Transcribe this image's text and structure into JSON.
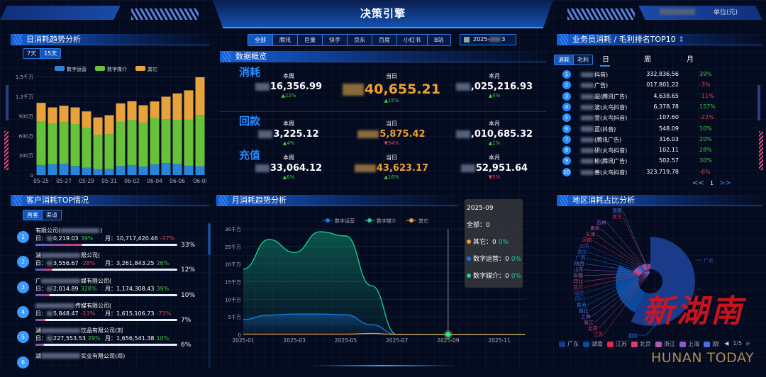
{
  "header": {
    "title": "决策引擎",
    "unit": "单位(元)"
  },
  "colors": {
    "digital_ops": "#2a85d8",
    "digital_media": "#67c23a",
    "other": "#e8a23c",
    "line_ops": "#1a7ae0",
    "line_media": "#17d69a",
    "line_other": "#e8a23c",
    "up": "#43c440",
    "down": "#e64052",
    "accent": "#2a8cff"
  },
  "daily": {
    "title": "日消耗趋势分析",
    "tabs": [
      "7天",
      "15天"
    ],
    "active_tab": "15天"
  },
  "platform_tabs": {
    "items": [
      "全部",
      "腾讯",
      "巨量",
      "快手",
      "京东",
      "百度",
      "小红书",
      "B站"
    ],
    "active": "全部"
  },
  "date_picker": {
    "icon": "calendar-icon",
    "value_visible": "2025-",
    "value_suffix": "3"
  },
  "overview": {
    "title": "数据概览",
    "rows": [
      {
        "label": "消耗",
        "cells": [
          {
            "period": "本周",
            "value": "16,356.99",
            "change": "22%",
            "dir": "up"
          },
          {
            "period": "当日",
            "value": "40,655.21",
            "change": "15%",
            "dir": "up"
          },
          {
            "period": "本月",
            "value": ",025,216.93",
            "change": "4%",
            "dir": "up"
          }
        ]
      },
      {
        "label": "回款",
        "cells": [
          {
            "period": "本周",
            "value": "3,225.12",
            "change": "4%",
            "dir": "up"
          },
          {
            "period": "当日",
            "value": "5,875.42",
            "change": "34%",
            "dir": "down"
          },
          {
            "period": "本月",
            "value": ",010,685.32",
            "change": "1%",
            "dir": "up"
          }
        ]
      },
      {
        "label": "充值",
        "cells": [
          {
            "period": "本周",
            "value": "33,064.12",
            "change": "6%",
            "dir": "up"
          },
          {
            "period": "当日",
            "value": "43,623.17",
            "change": "16%",
            "dir": "up"
          },
          {
            "period": "本月",
            "value": "52,951.64",
            "change": "5%",
            "dir": "down"
          }
        ]
      }
    ]
  },
  "ranking": {
    "title": "业务员消耗 / 毛利排名TOP10",
    "tabs": [
      "消耗",
      "毛利"
    ],
    "active_tab": "消耗",
    "periods": [
      "日",
      "周",
      "月"
    ],
    "active_period": "日",
    "rows": [
      {
        "rank": "1",
        "name": "抖音)",
        "amount": "332,836.56",
        "change": "39%",
        "dir": "up"
      },
      {
        "rank": "2",
        "name": "广告)",
        "amount": "017,801.22",
        "change": "-3%",
        "dir": "down"
      },
      {
        "rank": "3",
        "name": "超(腾讯广告)",
        "amount": "4,638.65",
        "change": "-11%",
        "dir": "down"
      },
      {
        "rank": "4",
        "name": "波(火鸟抖音)",
        "amount": "6,378.78",
        "change": "157%",
        "dir": "up"
      },
      {
        "rank": "5",
        "name": "萱(火鸟抖音)",
        "amount": ",107.60",
        "change": "-22%",
        "dir": "down"
      },
      {
        "rank": "6",
        "name": "蓝(抖音)",
        "amount": "548.09",
        "change": "10%",
        "dir": "up"
      },
      {
        "rank": "7",
        "name": "(腾讯广告)",
        "amount": "316.03",
        "change": "20%",
        "dir": "up"
      },
      {
        "rank": "8",
        "name": "研(火鸟抖音)",
        "amount": "102.11",
        "change": "28%",
        "dir": "up"
      },
      {
        "rank": "9",
        "name": "彬(腾讯广告)",
        "amount": "502.57",
        "change": "30%",
        "dir": "up"
      },
      {
        "rank": "10",
        "name": "善(火鸟抖音)",
        "amount": "323,719.78",
        "change": "-6%",
        "dir": "down"
      }
    ],
    "pager": {
      "prev": "<<",
      "page": "1",
      "next": ">>"
    }
  },
  "customers": {
    "title": "客户消耗TOP情况",
    "tabs": [
      "直客",
      "渠道"
    ],
    "active_tab": "直客",
    "day_label": "日：",
    "month_label": "月：",
    "rows": [
      {
        "rank": "1",
        "name": "有限公司(",
        "name_end": ")",
        "day": "0,219.03",
        "day_change": "39%",
        "day_dir": "up",
        "month": "10,717,420.46",
        "month_change": "-37%",
        "month_dir": "down",
        "share": "33%",
        "share_value": 33
      },
      {
        "rank": "2",
        "name": "湖",
        "name_end": "限公司(",
        "day": "3,556.67",
        "day_change": "-28%",
        "day_dir": "down",
        "month": "3,261,843.25",
        "month_change": "26%",
        "month_dir": "up",
        "share": "12%",
        "share_value": 12
      },
      {
        "rank": "3",
        "name": "广",
        "name_end": "媒有限公司(",
        "day": "2,014.89",
        "day_change": "328%",
        "day_dir": "up",
        "month": "1,174,308.43",
        "month_change": "39%",
        "month_dir": "up",
        "share": "10%",
        "share_value": 10
      },
      {
        "rank": "4",
        "name": "",
        "name_end": "传媒有限公司(",
        "day": "5,848.47",
        "day_change": "-13%",
        "day_dir": "down",
        "month": "1,615,106.73",
        "month_change": "-73%",
        "month_dir": "down",
        "share": "7%",
        "share_value": 7
      },
      {
        "rank": "5",
        "name": "湖",
        "name_end": "饮品有限公司(刘",
        "day": "227,553.53",
        "day_change": "29%",
        "day_dir": "up",
        "month": "1,656,541.38",
        "month_change": "10%",
        "month_dir": "up",
        "share": "6%",
        "share_value": 6
      },
      {
        "rank": "6",
        "name": "湖",
        "name_end": "实业有限公司(邓)"
      }
    ]
  },
  "monthly": {
    "title": "月消耗趋势分析",
    "tooltip": {
      "month": "2025-09",
      "total_label": "全部：",
      "total": "0",
      "items": [
        {
          "name": "其它：",
          "value": "0",
          "pct": "0%",
          "color": "#e8a23c"
        },
        {
          "name": "数字运营：",
          "value": "0",
          "pct": "0%",
          "color": "#1a7ae0"
        },
        {
          "name": "数字媒介：",
          "value": "0",
          "pct": "0%",
          "color": "#17d69a"
        }
      ]
    }
  },
  "region": {
    "title": "地区消耗占比分析",
    "legend": [
      "广东",
      "湖南",
      "江苏",
      "北京",
      "浙江",
      "上海",
      "湖!"
    ],
    "legend_page": "1/5"
  },
  "logo": {
    "cn": "新湖南",
    "en": "HUNAN TODAY"
  },
  "chart_data": [
    {
      "type": "bar",
      "stacked": true,
      "title": "日消耗趋势分析",
      "categories": [
        "05-25",
        "05-26",
        "05-27",
        "05-28",
        "05-29",
        "05-30",
        "05-31",
        "06-01",
        "06-02",
        "06-03",
        "06-04",
        "06-05",
        "06-06",
        "06-07",
        "06-08"
      ],
      "tick_labels": [
        "05-25",
        "05-27",
        "05-29",
        "05-31",
        "06-02",
        "06-04",
        "06-06",
        "06-0l"
      ],
      "y_ticks": [
        "0",
        "300万",
        "600万",
        "900万",
        "1.2千万",
        "1.5千万"
      ],
      "ylim": [
        0,
        1500
      ],
      "unit": "万",
      "legend_position": "top",
      "series": [
        {
          "name": "数字运营",
          "values": [
            152,
            166,
            170,
            137,
            112,
            90,
            94,
            137,
            152,
            130,
            163,
            181,
            170,
            141,
            134
          ]
        },
        {
          "name": "数字媒介",
          "values": [
            661,
            618,
            636,
            640,
            611,
            521,
            531,
            673,
            686,
            665,
            704,
            668,
            672,
            701,
            780
          ]
        },
        {
          "name": "其它",
          "values": [
            286,
            246,
            249,
            253,
            246,
            267,
            286,
            281,
            286,
            268,
            253,
            344,
            401,
            448,
            575
          ]
        }
      ]
    },
    {
      "type": "area",
      "title": "月消耗趋势分析",
      "x": [
        "2025-01",
        "2025-02",
        "2025-03",
        "2025-04",
        "2025-05",
        "2025-06",
        "2025-07",
        "2025-08",
        "2025-09",
        "2025-10",
        "2025-11",
        "2025-12"
      ],
      "tick_labels": [
        "2025-01",
        "2025-03",
        "2025-05",
        "2025-07",
        "2025-09",
        "2025-11"
      ],
      "y_ticks": [
        "0",
        "5千万",
        "10千万",
        "15千万",
        "20千万",
        "25千万",
        "30千万"
      ],
      "ylim": [
        0,
        30
      ],
      "unit": "千万",
      "legend_position": "top",
      "highlight": "2025-09",
      "series": [
        {
          "name": "数字运营",
          "values": [
            4.3,
            5.5,
            5.8,
            5.8,
            5.6,
            2.8,
            0,
            0,
            0,
            0,
            0,
            0
          ]
        },
        {
          "name": "数字媒介",
          "values": [
            18.6,
            27.0,
            23.3,
            29.2,
            28.0,
            13.9,
            0,
            0,
            0,
            0,
            0,
            0
          ]
        },
        {
          "name": "其它",
          "values": [
            0.1,
            0.1,
            0.1,
            0.1,
            0.1,
            0.3,
            0,
            0,
            0,
            0,
            0,
            0
          ]
        }
      ]
    },
    {
      "type": "pie",
      "rose": true,
      "title": "地区消耗占比分析",
      "labels": [
        "广东",
        "湖南",
        "江苏",
        "北京",
        "浙江",
        "上海",
        "湖北",
        "香港",
        "四川",
        "福建",
        "其它",
        "河北",
        "安徽",
        "山东",
        "陕西",
        "广西",
        "重庆",
        "云南",
        "河南",
        "天津",
        "贵州",
        "吉林",
        "其它",
        "海南"
      ],
      "values": [
        56,
        25,
        1.6,
        1.4,
        1.3,
        1.2,
        1.1,
        1,
        0.9,
        0.8,
        0.8,
        0.7,
        0.7,
        0.7,
        0.6,
        0.6,
        0.6,
        0.5,
        0.5,
        0.5,
        0.4,
        0.4,
        0.4,
        0.3
      ],
      "colors": [
        "#1a3a8a",
        "#0a4a9a",
        "#e8284a",
        "#d8406a",
        "#b05aa8",
        "#8a5ac8",
        "#4a70e0",
        "#2a6ad8",
        "#1a5ab8",
        "#2a4aa8",
        "#e8284a",
        "#d8406a",
        "#b05aa8",
        "#8a5ac8",
        "#4a70e0",
        "#2a6ad8",
        "#1a5ab8",
        "#2a4aa8",
        "#e8284a",
        "#d8406a",
        "#b05aa8",
        "#8a5ac8",
        "#e8284a",
        "#4a70e0"
      ]
    }
  ]
}
